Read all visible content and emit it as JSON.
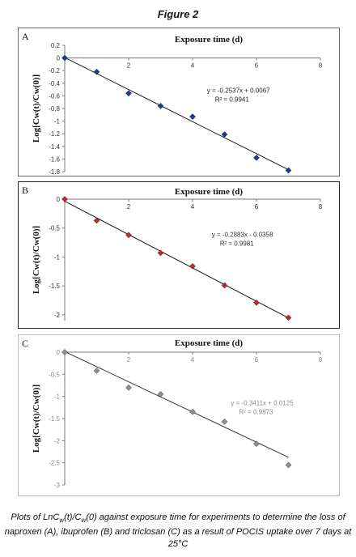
{
  "figure": {
    "title": "Figure 2",
    "caption": {
      "part1": "Plots of LnC",
      "sub1": "w",
      "part2": "(t)/C",
      "sub2": "w",
      "part3": "(0) against exposure time for experiments to determine the loss of naproxen (A), ibuprofen (B) and triclosan (C) as a result of POCIS uptake over 7 days at 25°C"
    }
  },
  "chart_data": [
    {
      "type": "scatter",
      "panel_label": "A",
      "xlabel": "Exposure time (d)",
      "ylabel": "Log[Cw(t)/Cw(0)]",
      "xlim": [
        0,
        8
      ],
      "ylim": [
        -1.8,
        0.2
      ],
      "xticks": [
        0,
        2,
        4,
        6,
        8
      ],
      "yticks": [
        0.2,
        0,
        -0.2,
        -0.4,
        -0.6,
        -0.8,
        -1,
        -1.2,
        -1.4,
        -1.6,
        -1.8
      ],
      "xtick_labels": [
        "0",
        "2",
        "4",
        "6",
        "8"
      ],
      "ytick_labels": [
        "0.2",
        "0",
        "-0.2",
        "-0.4",
        "-0.6",
        "-0.8",
        "-1",
        "-1.2",
        "-1.4",
        "-1.6",
        "-1.8"
      ],
      "x": [
        0,
        1,
        2,
        3,
        4,
        5,
        6,
        7
      ],
      "y": [
        0,
        -0.22,
        -0.56,
        -0.76,
        -0.93,
        -1.21,
        -1.58,
        -1.78
      ],
      "trendline": {
        "slope": -0.2537,
        "intercept": 0.0067
      },
      "equation": "y = -0.2537x + 0.0067",
      "r2": "R² = 0.9941",
      "marker_color": "#1f3a93",
      "grid": false,
      "legend": "none"
    },
    {
      "type": "scatter",
      "panel_label": "B",
      "xlabel": "Exposure time (d)",
      "ylabel": "Log[Cw(t)/Cw(0)]",
      "xlim": [
        0,
        8
      ],
      "ylim": [
        -2.1,
        0
      ],
      "xticks": [
        0,
        2,
        4,
        6,
        8
      ],
      "yticks": [
        0,
        -0.5,
        -1,
        -1.5,
        -2
      ],
      "xtick_labels": [
        "0",
        "2",
        "4",
        "6",
        "8"
      ],
      "ytick_labels": [
        "0",
        "-0.5",
        "-1",
        "-1.5",
        "-2"
      ],
      "x": [
        0,
        1,
        2,
        3,
        4,
        5,
        6,
        7
      ],
      "y": [
        0,
        -0.37,
        -0.62,
        -0.93,
        -1.16,
        -1.49,
        -1.79,
        -2.05
      ],
      "trendline": {
        "slope": -0.2883,
        "intercept": -0.0358
      },
      "equation": "y = -0.2883x - 0.0358",
      "r2": "R² = 0.9981",
      "marker_color": "#c0282d",
      "grid": false,
      "legend": "none"
    },
    {
      "type": "scatter",
      "panel_label": "C",
      "xlabel": "Exposure time (d)",
      "ylabel": "Log[Cw(t)/Cw(0)]",
      "xlim": [
        0,
        8
      ],
      "ylim": [
        -3,
        0
      ],
      "xticks": [
        0,
        2,
        4,
        6,
        8
      ],
      "yticks": [
        0,
        -0.5,
        -1,
        -1.5,
        -2,
        -2.5,
        -3
      ],
      "xtick_labels": [
        "0",
        "2",
        "4",
        "6",
        "8"
      ],
      "ytick_labels": [
        "0",
        "-0.5",
        "-1",
        "-1.5",
        "-2",
        "-2.5",
        "-3"
      ],
      "x": [
        0,
        1,
        2,
        3,
        4,
        5,
        6,
        7
      ],
      "y": [
        0,
        -0.42,
        -0.8,
        -0.95,
        -1.35,
        -1.57,
        -2.07,
        -2.55
      ],
      "trendline": {
        "slope": -0.3411,
        "intercept": 0.0125
      },
      "equation": "y = -0.3411x + 0.0125",
      "r2": "R² = 0.9873",
      "marker_color": "#8a8f96",
      "grid": false,
      "legend": "none"
    }
  ]
}
